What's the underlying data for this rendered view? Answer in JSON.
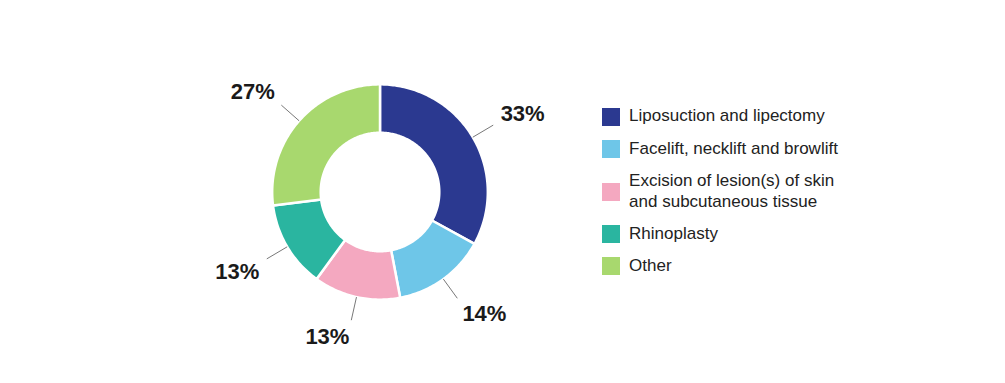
{
  "chart_data": {
    "type": "donut",
    "categories": [
      "Liposuction and lipectomy",
      "Facelift, necklift and browlift",
      "Excision of lesion(s) of skin\nand subcutaneous tissue",
      "Rhinoplasty",
      "Other"
    ],
    "values": [
      33,
      14,
      13,
      13,
      27
    ],
    "value_labels": [
      "33%",
      "14%",
      "13%",
      "13%",
      "27%"
    ],
    "colors": [
      "#2b3990",
      "#6ec6e8",
      "#f4a8c0",
      "#2ab5a0",
      "#a8d86e"
    ],
    "data_labels": true,
    "legend": "right"
  }
}
